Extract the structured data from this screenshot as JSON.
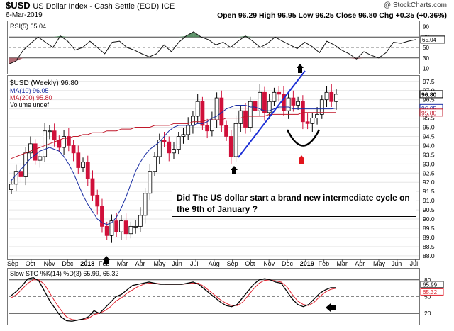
{
  "header": {
    "symbol": "$USD",
    "name": "US Dollar Index - Cash Settle (EOD)",
    "exchange": "ICE",
    "date": "6-Mar-2019",
    "watermark": "@ StockCharts.com",
    "ohlc": "Open 96.29  High 96.95  Low 96.25  Close 96.80  Chg +0.35 (+0.36%)"
  },
  "annotation": {
    "text": "Did The US dollar start a brand new intermediate cycle on the 9th of January ?"
  },
  "chart_data": [
    {
      "type": "line",
      "name": "rsi-panel",
      "legend": "RSI(5) 65.04",
      "ylim": [
        0,
        100
      ],
      "yticks": [
        10,
        30,
        50,
        70,
        90
      ],
      "reference_lines": [
        30,
        50,
        70
      ],
      "last_value": "65.04",
      "values": [
        18,
        24,
        45,
        58,
        70,
        60,
        50,
        72,
        62,
        45,
        50,
        62,
        50,
        38,
        60,
        62,
        50,
        45,
        38,
        32,
        38,
        55,
        42,
        60,
        72,
        80,
        70,
        65,
        55,
        60,
        50,
        62,
        72,
        62,
        50,
        58,
        70,
        62,
        55,
        48,
        60,
        52,
        40,
        62,
        55,
        45,
        38,
        28,
        42,
        35,
        30,
        40,
        60,
        58,
        62,
        65
      ]
    },
    {
      "type": "candlestick",
      "name": "price-panel",
      "legend": [
        "$USD (Weekly) 96.80",
        "MA(10) 96.05",
        "MA(200) 95.80",
        "Volume undef"
      ],
      "x_labels": [
        "Sep",
        "Oct",
        "Nov",
        "Dec",
        "2018",
        "Feb",
        "Mar",
        "Apr",
        "May",
        "Jun",
        "Jul",
        "Aug",
        "Sep",
        "Oct",
        "Nov",
        "Dec",
        "2019",
        "Feb",
        "Mar",
        "Apr",
        "May",
        "Jun",
        "Jul"
      ],
      "ylim": [
        87.8,
        97.8
      ],
      "yticks": [
        "88.0",
        "88.5",
        "89.0",
        "89.5",
        "90.0",
        "90.5",
        "91.0",
        "91.5",
        "92.0",
        "92.5",
        "93.0",
        "93.5",
        "94.0",
        "94.5",
        "95.0",
        "95.5",
        "96.0",
        "96.5",
        "97.0",
        "97.5"
      ],
      "last_price": "96.80",
      "ma10_last": "96.05",
      "ma200_last": "95.80",
      "closes": [
        91.9,
        92.6,
        92.3,
        93.6,
        94.1,
        93.2,
        93.4,
        94.8,
        94.8,
        94.3,
        93.9,
        94.5,
        94.0,
        93.6,
        92.8,
        93.1,
        92.2,
        91.3,
        90.7,
        89.6,
        89.1,
        89.9,
        89.3,
        89.9,
        89.2,
        89.6,
        89.6,
        90.2,
        91.4,
        92.6,
        93.4,
        94.3,
        94.2,
        93.6,
        93.8,
        94.5,
        94.6,
        95.1,
        95.6,
        96.4,
        95.1,
        94.8,
        95.4,
        96.6,
        95.1,
        94.5,
        93.4,
        95.2,
        95.9,
        95.0,
        96.4,
        95.9,
        96.9,
        95.8,
        96.4,
        96.9,
        96.8,
        95.9,
        96.6,
        96.2,
        96.4,
        95.3,
        95.2,
        95.5,
        95.7,
        96.5,
        96.9,
        96.4,
        96.8
      ],
      "ma10": [
        92.1,
        92.4,
        92.7,
        93.0,
        93.3,
        93.5,
        93.7,
        93.8,
        93.9,
        93.8,
        93.7,
        93.4,
        93.0,
        92.5,
        91.9,
        91.3,
        90.8,
        90.4,
        90.0,
        89.8,
        89.7,
        89.8,
        90.1,
        90.6,
        91.2,
        91.9,
        92.6,
        93.1,
        93.5,
        93.8,
        94.0,
        94.2,
        94.5,
        94.8,
        95.0,
        95.1,
        95.1,
        95.1,
        95.1,
        95.2,
        95.2,
        95.3,
        95.5,
        95.6,
        95.8,
        96.0,
        96.1,
        96.2,
        96.2,
        96.2,
        96.1,
        96.1,
        96.0,
        95.9,
        95.9,
        96.0,
        96.1,
        96.1,
        96.1,
        96.0,
        96.0,
        96.0,
        96.0,
        96.0,
        96.0,
        96.0,
        96.0,
        96.0,
        96.05
      ],
      "ma200": [
        93.3,
        93.4,
        93.5,
        93.6,
        93.7,
        93.8,
        93.9,
        94.0,
        94.1,
        94.2,
        94.3,
        94.4,
        94.4,
        94.5,
        94.5,
        94.6,
        94.6,
        94.7,
        94.7,
        94.7,
        94.8,
        94.8,
        94.8,
        94.9,
        94.9,
        94.9,
        95.0,
        95.0,
        95.0,
        95.0,
        95.1,
        95.1,
        95.1,
        95.1,
        95.2,
        95.2,
        95.2,
        95.2,
        95.3,
        95.3,
        95.3,
        95.4,
        95.4,
        95.4,
        95.4,
        95.5,
        95.5,
        95.5,
        95.5,
        95.6,
        95.6,
        95.6,
        95.6,
        95.6,
        95.7,
        95.7,
        95.7,
        95.7,
        95.7,
        95.7,
        95.7,
        95.8,
        95.8,
        95.8,
        95.8,
        95.8,
        95.8,
        95.8,
        95.8
      ]
    },
    {
      "type": "line",
      "name": "stochastic-panel",
      "legend": "Slow STO %K(14) %D(3) 65.99, 65.32",
      "ylim": [
        0,
        100
      ],
      "yticks": [
        "20",
        "50",
        "80"
      ],
      "reference_lines": [
        20,
        50,
        80
      ],
      "k_last": "65.99",
      "d_last": "65.32",
      "k": [
        52,
        60,
        70,
        82,
        84,
        78,
        60,
        42,
        28,
        14,
        7,
        6,
        8,
        10,
        14,
        25,
        20,
        30,
        40,
        50,
        54,
        62,
        70,
        72,
        74,
        76,
        74,
        72,
        72,
        72,
        72,
        72,
        74,
        76,
        72,
        64,
        56,
        48,
        40,
        34,
        32,
        36,
        48,
        60,
        72,
        80,
        82,
        80,
        76,
        74,
        60,
        46,
        36,
        32,
        36,
        46,
        56,
        62,
        66,
        66
      ],
      "d": [
        48,
        54,
        64,
        74,
        80,
        80,
        72,
        56,
        40,
        26,
        14,
        9,
        8,
        9,
        11,
        18,
        20,
        25,
        32,
        42,
        48,
        56,
        62,
        68,
        72,
        74,
        74,
        73,
        72,
        72,
        72,
        72,
        73,
        74,
        74,
        68,
        60,
        52,
        44,
        38,
        34,
        34,
        40,
        52,
        64,
        74,
        79,
        80,
        78,
        76,
        68,
        54,
        42,
        36,
        34,
        40,
        50,
        58,
        63,
        65
      ]
    }
  ]
}
